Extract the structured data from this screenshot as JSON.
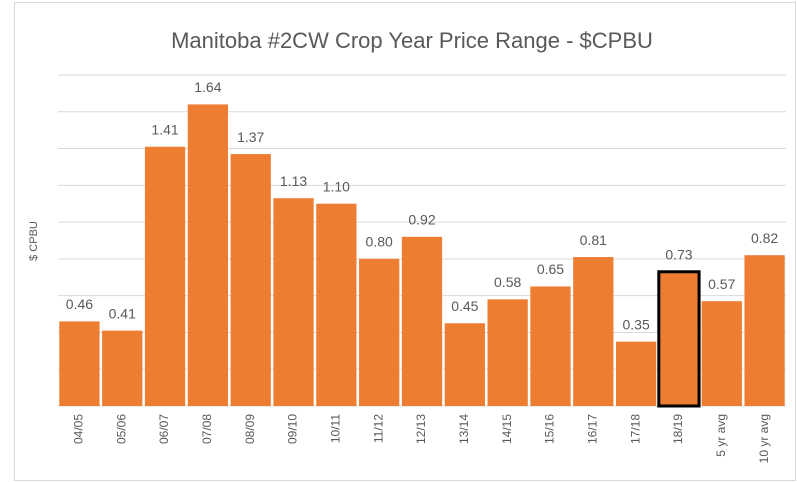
{
  "chart_data": {
    "type": "bar",
    "title": "Manitoba #2CW Crop Year Price Range - $CPBU",
    "y_label": "$ CPBU",
    "categories": [
      "04/05",
      "05/06",
      "06/07",
      "07/08",
      "08/09",
      "09/10",
      "10/11",
      "11/12",
      "12/13",
      "13/14",
      "14/15",
      "15/16",
      "16/17",
      "17/18",
      "18/19",
      "5 yr avg",
      "10 yr avg"
    ],
    "values": [
      0.46,
      0.41,
      1.41,
      1.64,
      1.37,
      1.13,
      1.1,
      0.8,
      0.92,
      0.45,
      0.58,
      0.65,
      0.81,
      0.35,
      0.73,
      0.57,
      0.82
    ],
    "value_labels": [
      "0.46",
      "0.41",
      "1.41",
      "1.64",
      "1.37",
      "1.13",
      "1.10",
      "0.80",
      "0.92",
      "0.45",
      "0.58",
      "0.65",
      "0.81",
      "0.35",
      "0.73",
      "0.57",
      "0.82"
    ],
    "color": "#ed7d31",
    "highlight_category": "18/19",
    "highlight_color": "#000000",
    "ylim": [
      0,
      1.8
    ],
    "yticks": [
      0,
      0.2,
      0.4,
      0.6,
      0.8,
      1.0,
      1.2,
      1.4,
      1.6,
      1.8
    ],
    "grid": true
  }
}
